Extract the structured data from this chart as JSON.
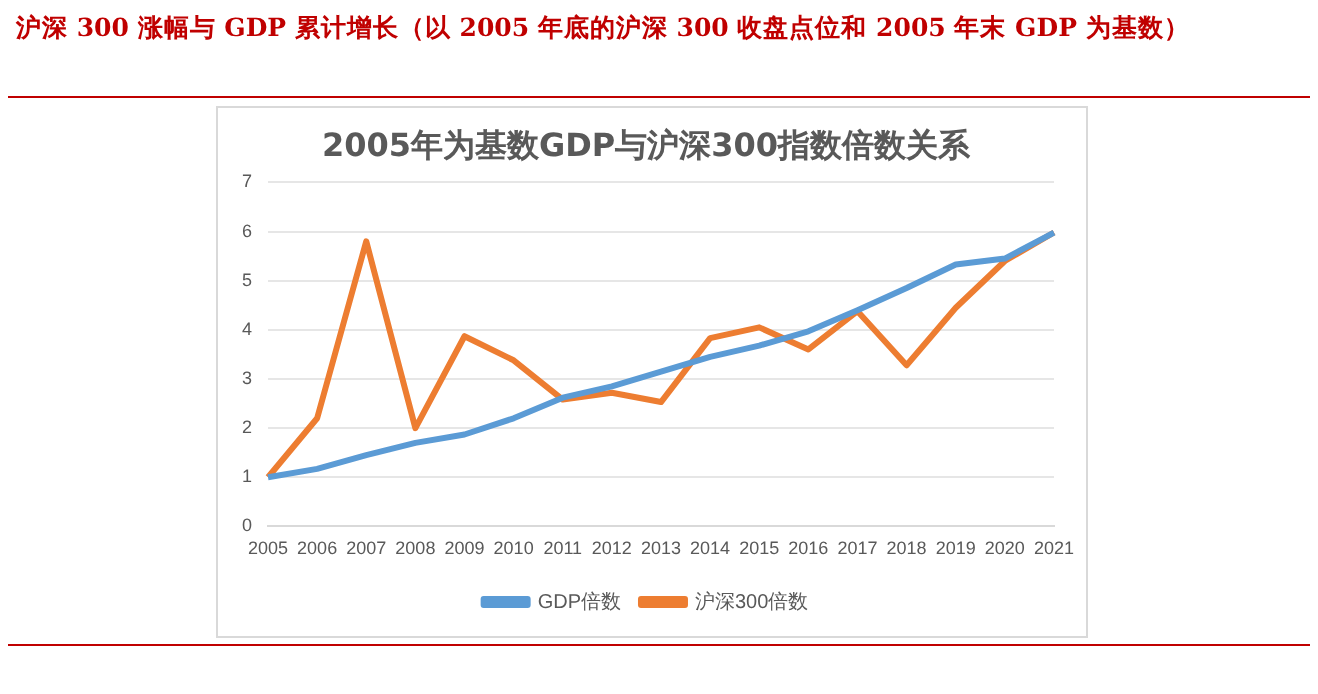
{
  "chart_data": {
    "type": "line",
    "title": "沪深 300 涨幅与 GDP 累计增长（以 2005 年底的沪深 300 收盘点位和 2005 年末 GDP 为基数）",
    "subtitle": "2005年为基数GDP与沪深300指数倍数关系",
    "categories": [
      "2005",
      "2006",
      "2007",
      "2008",
      "2009",
      "2010",
      "2011",
      "2012",
      "2013",
      "2014",
      "2015",
      "2016",
      "2017",
      "2018",
      "2019",
      "2020",
      "2021"
    ],
    "series": [
      {
        "name": "GDP倍数",
        "color": "#5b9bd5",
        "values": [
          1,
          1.17,
          1.45,
          1.7,
          1.87,
          2.2,
          2.62,
          2.85,
          3.15,
          3.45,
          3.68,
          3.97,
          4.4,
          4.85,
          5.33,
          5.45,
          5.98
        ]
      },
      {
        "name": "沪深300倍数",
        "color": "#ed7d31",
        "values": [
          1,
          2.2,
          5.8,
          2.0,
          3.87,
          3.38,
          2.58,
          2.72,
          2.53,
          3.83,
          4.05,
          3.6,
          4.38,
          3.28,
          4.45,
          5.4,
          5.98
        ]
      }
    ],
    "ylim": [
      0,
      7
    ],
    "yticks": [
      0,
      1,
      2,
      3,
      4,
      5,
      6,
      7
    ],
    "grid": "y",
    "legend": "bottom",
    "marker": "none",
    "line_style": "solid"
  }
}
